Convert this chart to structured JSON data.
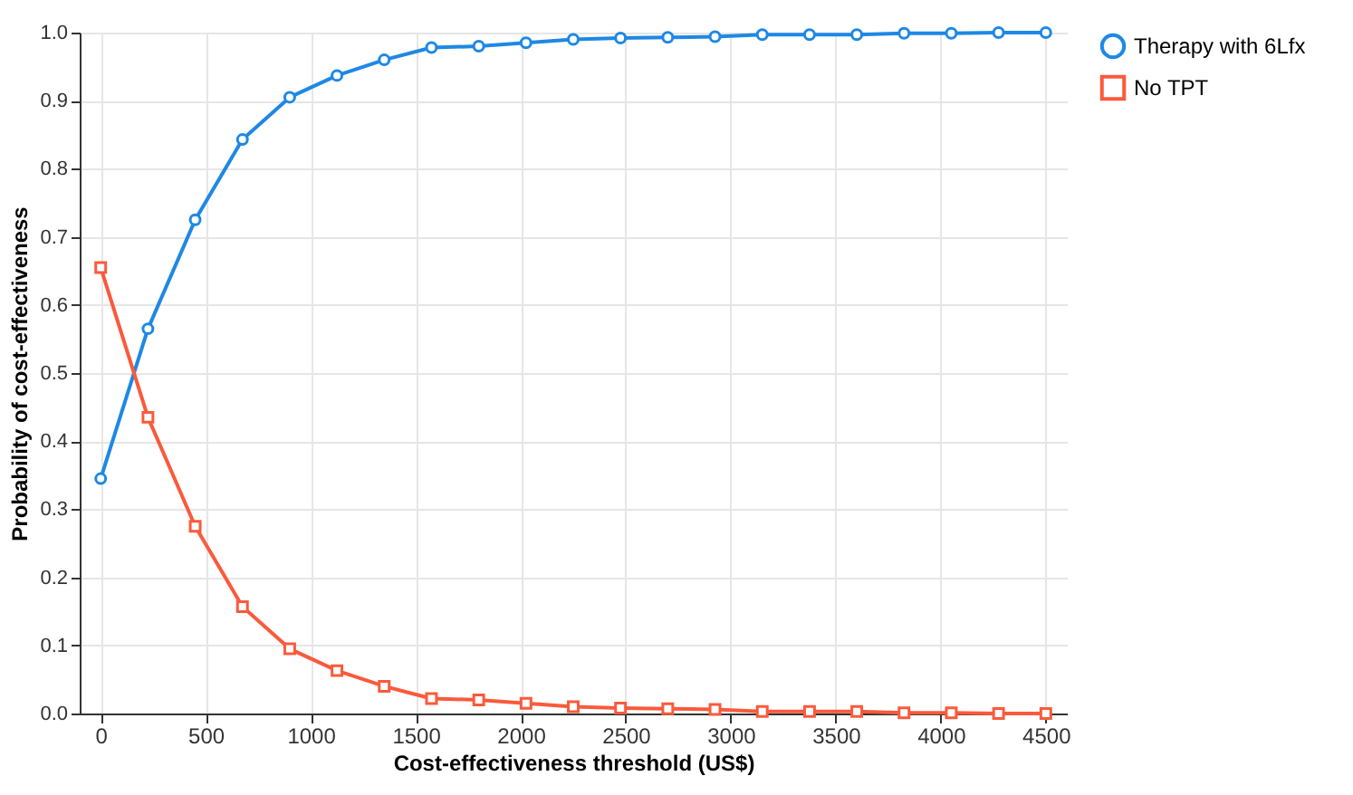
{
  "chart_data": {
    "type": "line",
    "xlabel": "Cost-effectiveness threshold (US$)",
    "ylabel": "Probability of cost-effectiveness",
    "x": [
      0,
      225,
      450,
      675,
      900,
      1125,
      1350,
      1575,
      1800,
      2025,
      2250,
      2475,
      2700,
      2925,
      3150,
      3375,
      3600,
      3825,
      4050,
      4275,
      4500
    ],
    "series": [
      {
        "name": "Therapy with 6Lfx",
        "color": "#1e88e5",
        "marker": "circle",
        "values": [
          0.345,
          0.565,
          0.725,
          0.843,
          0.905,
          0.937,
          0.96,
          0.978,
          0.98,
          0.985,
          0.99,
          0.992,
          0.993,
          0.994,
          0.997,
          0.997,
          0.997,
          0.999,
          0.999,
          1.0,
          1.0
        ]
      },
      {
        "name": "No TPT",
        "color": "#fa5a3c",
        "marker": "square",
        "values": [
          0.655,
          0.435,
          0.275,
          0.157,
          0.095,
          0.063,
          0.04,
          0.022,
          0.02,
          0.015,
          0.01,
          0.008,
          0.007,
          0.006,
          0.003,
          0.003,
          0.003,
          0.001,
          0.001,
          0.0,
          0.0
        ]
      }
    ],
    "xlim": [
      -100,
      4600
    ],
    "xticks": [
      0,
      500,
      1000,
      1500,
      2000,
      2500,
      3000,
      3500,
      4000,
      4500
    ],
    "ylim": [
      0,
      1
    ],
    "yticks": [
      {
        "value": 0,
        "label": "0.0"
      },
      0.1,
      0.2,
      0.3,
      0.4,
      0.5,
      0.6,
      0.7,
      0.8,
      0.9,
      {
        "value": 1,
        "label": "1.0"
      }
    ],
    "grid": true,
    "legend": "top right",
    "line_style": "solid"
  }
}
